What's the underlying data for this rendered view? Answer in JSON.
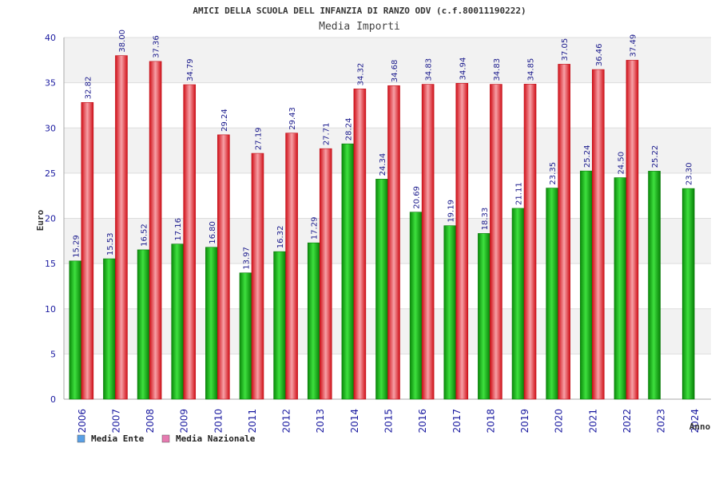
{
  "chart_data": {
    "type": "bar",
    "title": "AMICI DELLA SCUOLA DELL INFANZIA DI RANZO ODV (c.f.80011190222)",
    "subtitle": "Media Importi",
    "xlabel": "Anno",
    "ylabel": "Euro",
    "ylim": [
      0,
      40
    ],
    "yticks": [
      "0",
      "5",
      "10",
      "15",
      "20",
      "25",
      "30",
      "35",
      "40"
    ],
    "grid": true,
    "legend_position": "bottom-left",
    "categories": [
      "2006",
      "2007",
      "2008",
      "2009",
      "2010",
      "2011",
      "2012",
      "2013",
      "2014",
      "2015",
      "2016",
      "2017",
      "2018",
      "2019",
      "2020",
      "2021",
      "2022",
      "2023",
      "2024"
    ],
    "series": [
      {
        "name": "Media Ente",
        "color": "#1fbf1f",
        "legend_color": "#5aa0e6",
        "values": [
          15.29,
          15.53,
          16.52,
          17.16,
          16.8,
          13.97,
          16.32,
          17.29,
          28.24,
          24.34,
          20.69,
          19.19,
          18.33,
          21.11,
          23.35,
          25.24,
          24.5,
          25.22,
          23.3
        ],
        "labels": [
          "15.29",
          "15.53",
          "16.52",
          "17.16",
          "16.80",
          "13.97",
          "16.32",
          "17.29",
          "28.24",
          "24.34",
          "20.69",
          "19.19",
          "18.33",
          "21.11",
          "23.35",
          "25.24",
          "24.50",
          "25.22",
          "23.30"
        ]
      },
      {
        "name": "Media Nazionale",
        "color": "#e8202a",
        "legend_color": "#e67ab0",
        "values": [
          32.82,
          38.0,
          37.36,
          34.79,
          29.24,
          27.19,
          29.43,
          27.71,
          34.32,
          34.68,
          34.83,
          34.94,
          34.83,
          34.85,
          37.05,
          36.46,
          37.49,
          null,
          null
        ],
        "labels": [
          "32.82",
          "38.00",
          "37.36",
          "34.79",
          "29.24",
          "27.19",
          "29.43",
          "27.71",
          "34.32",
          "34.68",
          "34.83",
          "34.94",
          "34.83",
          "34.85",
          "37.05",
          "36.46",
          "37.49",
          "",
          ""
        ]
      }
    ]
  }
}
